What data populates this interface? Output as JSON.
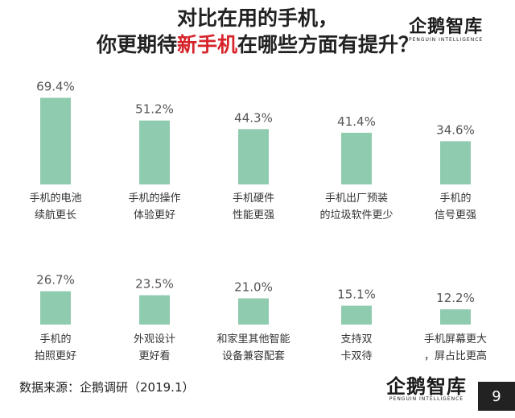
{
  "title": {
    "line1": "对比在用的手机，",
    "line2_prefix": "你更期待",
    "line2_highlight": "新手机",
    "line2_suffix": "在哪些方面有提升？"
  },
  "logo": {
    "text": "企鹅智库",
    "subtitle": "PENGUIN INTELLIGENCE"
  },
  "source": "数据来源：企鹅调研（2019.1）",
  "page_number": "9",
  "colors": {
    "bar": "#8fcbae",
    "highlight": "#d6242a"
  },
  "chart_data": {
    "type": "bar",
    "title": "对比在用的手机，你更期待新手机在哪些方面有提升？",
    "unit": "%",
    "ylim": [
      0,
      100
    ],
    "rows": [
      {
        "categories": [
          [
            "手机的电池",
            "续航更长"
          ],
          [
            "手机的操作",
            "体验更好"
          ],
          [
            "手机硬件",
            "性能更强"
          ],
          [
            "手机出厂预装",
            "的垃圾软件更少"
          ],
          [
            "手机的",
            "信号更强"
          ]
        ],
        "values": [
          69.4,
          51.2,
          44.3,
          41.4,
          34.6
        ]
      },
      {
        "categories": [
          [
            "手机的",
            "拍照更好"
          ],
          [
            "外观设计",
            "更好看"
          ],
          [
            "和家里其他智能",
            "设备兼容配套"
          ],
          [
            "支持双",
            "卡双待"
          ],
          [
            "手机屏幕更大",
            "，屏占比更高"
          ]
        ],
        "values": [
          26.7,
          23.5,
          21.0,
          15.1,
          12.2
        ]
      }
    ]
  }
}
